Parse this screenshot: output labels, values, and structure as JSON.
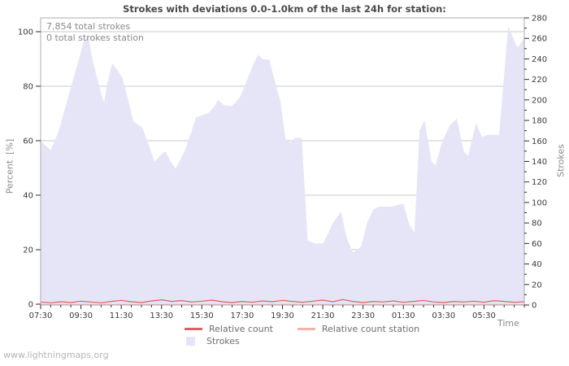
{
  "page": {
    "footer": "www.lightningmaps.org"
  },
  "chart_data": {
    "type": "area",
    "title": "Strokes with deviations 0.0-1.0km of the last 24h for station:",
    "annotations": [
      "7,854 total strokes",
      "0 total strokes station"
    ],
    "grid": "horizontal-only",
    "legend_position": "bottom-center",
    "x_axis": {
      "label": "Time",
      "span_hours": 24,
      "start_label": "07:30",
      "tick_labels": [
        "07:30",
        "09:30",
        "11:30",
        "13:30",
        "15:30",
        "17:30",
        "19:30",
        "21:30",
        "23:30",
        "01:30",
        "03:30",
        "05:30"
      ],
      "tick_hours": [
        0,
        2,
        4,
        6,
        8,
        10,
        12,
        14,
        16,
        18,
        20,
        22
      ],
      "minor_step_hours": 0.5
    },
    "y_left": {
      "label": "Percent  [%]",
      "min": 0,
      "max": 100,
      "tick_step": 20,
      "tick_labels": [
        "0",
        "20",
        "40",
        "60",
        "80",
        "100"
      ]
    },
    "y_right": {
      "label": "Strokes",
      "min": 0,
      "max": 280,
      "tick_step": 20,
      "minor_step": 10,
      "tick_labels": [
        "0",
        "20",
        "40",
        "60",
        "80",
        "100",
        "120",
        "140",
        "160",
        "180",
        "200",
        "220",
        "240",
        "260",
        "280"
      ]
    },
    "series": {
      "strokes": {
        "name": "Strokes",
        "axis": "right",
        "color": "#e5e5f7",
        "points": [
          [
            0,
            160
          ],
          [
            0.5,
            151
          ],
          [
            0.9,
            170
          ],
          [
            1.4,
            205
          ],
          [
            1.9,
            240
          ],
          [
            2.15,
            258
          ],
          [
            2.35,
            263
          ],
          [
            2.6,
            237
          ],
          [
            3.0,
            206
          ],
          [
            3.15,
            197
          ],
          [
            3.3,
            215
          ],
          [
            3.55,
            236
          ],
          [
            3.8,
            229
          ],
          [
            4.05,
            222
          ],
          [
            4.35,
            200
          ],
          [
            4.6,
            179
          ],
          [
            5.05,
            173
          ],
          [
            5.35,
            157
          ],
          [
            5.65,
            140
          ],
          [
            6.0,
            147
          ],
          [
            6.2,
            150
          ],
          [
            6.45,
            140
          ],
          [
            6.7,
            133
          ],
          [
            7.1,
            148
          ],
          [
            7.5,
            170
          ],
          [
            7.7,
            183
          ],
          [
            8.0,
            185
          ],
          [
            8.3,
            187
          ],
          [
            8.6,
            193
          ],
          [
            8.8,
            200
          ],
          [
            9.1,
            195
          ],
          [
            9.5,
            194
          ],
          [
            9.9,
            203
          ],
          [
            10.3,
            222
          ],
          [
            10.6,
            237
          ],
          [
            10.8,
            244
          ],
          [
            11.0,
            240
          ],
          [
            11.35,
            239
          ],
          [
            11.6,
            220
          ],
          [
            11.9,
            198
          ],
          [
            12.15,
            162
          ],
          [
            12.4,
            158
          ],
          [
            12.6,
            163
          ],
          [
            12.95,
            163
          ],
          [
            13.25,
            63
          ],
          [
            13.6,
            60
          ],
          [
            14.0,
            60
          ],
          [
            14.2,
            67
          ],
          [
            14.5,
            80
          ],
          [
            14.9,
            91
          ],
          [
            15.2,
            65
          ],
          [
            15.5,
            51
          ],
          [
            15.9,
            57
          ],
          [
            16.2,
            80
          ],
          [
            16.5,
            93
          ],
          [
            16.8,
            96
          ],
          [
            17.4,
            96
          ],
          [
            18.0,
            99
          ],
          [
            18.3,
            78
          ],
          [
            18.55,
            71
          ],
          [
            18.8,
            170
          ],
          [
            19.05,
            180
          ],
          [
            19.4,
            140
          ],
          [
            19.6,
            136
          ],
          [
            19.9,
            158
          ],
          [
            20.3,
            175
          ],
          [
            20.65,
            182
          ],
          [
            21.0,
            150
          ],
          [
            21.2,
            145
          ],
          [
            21.6,
            177
          ],
          [
            21.9,
            164
          ],
          [
            22.2,
            166
          ],
          [
            22.75,
            166
          ],
          [
            23.2,
            272
          ],
          [
            23.65,
            251
          ],
          [
            24,
            260
          ]
        ]
      },
      "relative_count": {
        "name": "Relative count",
        "axis": "left",
        "color": "#dd5f5f",
        "points": [
          [
            0,
            0.8
          ],
          [
            0.5,
            0.5
          ],
          [
            1,
            0.9
          ],
          [
            1.5,
            0.6
          ],
          [
            2,
            1.1
          ],
          [
            2.5,
            0.8
          ],
          [
            3,
            0.5
          ],
          [
            3.5,
            1.0
          ],
          [
            4,
            1.4
          ],
          [
            4.5,
            0.9
          ],
          [
            5,
            0.6
          ],
          [
            5.5,
            1.2
          ],
          [
            6,
            1.6
          ],
          [
            6.5,
            1.0
          ],
          [
            7,
            1.3
          ],
          [
            7.5,
            0.8
          ],
          [
            8,
            1.1
          ],
          [
            8.5,
            1.5
          ],
          [
            9,
            0.9
          ],
          [
            9.5,
            0.6
          ],
          [
            10,
            1.0
          ],
          [
            10.5,
            0.7
          ],
          [
            11,
            1.2
          ],
          [
            11.5,
            0.9
          ],
          [
            12,
            1.4
          ],
          [
            12.5,
            1.0
          ],
          [
            13,
            0.7
          ],
          [
            13.5,
            1.1
          ],
          [
            14,
            1.5
          ],
          [
            14.5,
            0.9
          ],
          [
            15,
            1.7
          ],
          [
            15.5,
            1.0
          ],
          [
            16,
            0.6
          ],
          [
            16.5,
            1.0
          ],
          [
            17,
            0.8
          ],
          [
            17.5,
            1.2
          ],
          [
            18,
            0.7
          ],
          [
            18.5,
            1.0
          ],
          [
            19,
            1.4
          ],
          [
            19.5,
            0.8
          ],
          [
            20,
            0.6
          ],
          [
            20.5,
            1.0
          ],
          [
            21,
            0.8
          ],
          [
            21.5,
            1.1
          ],
          [
            22,
            0.7
          ],
          [
            22.5,
            1.3
          ],
          [
            23,
            1.0
          ],
          [
            23.5,
            0.7
          ],
          [
            24,
            0.9
          ]
        ]
      },
      "relative_count_station": {
        "name": "Relative count station",
        "axis": "left",
        "color": "#f5b0b0",
        "points": [
          [
            0,
            0
          ],
          [
            24,
            0
          ]
        ]
      }
    },
    "legend": [
      {
        "label": "Relative count",
        "color": "#dd5f5f",
        "swatch": "line"
      },
      {
        "label": "Relative count station",
        "color": "#f5b0b0",
        "swatch": "line"
      },
      {
        "label": "Strokes",
        "color": "#e5e5f7",
        "swatch": "box"
      }
    ],
    "colors": {
      "grid": "#c8c8c8",
      "border": "#ababab",
      "tick": "#2a2a2a"
    }
  }
}
